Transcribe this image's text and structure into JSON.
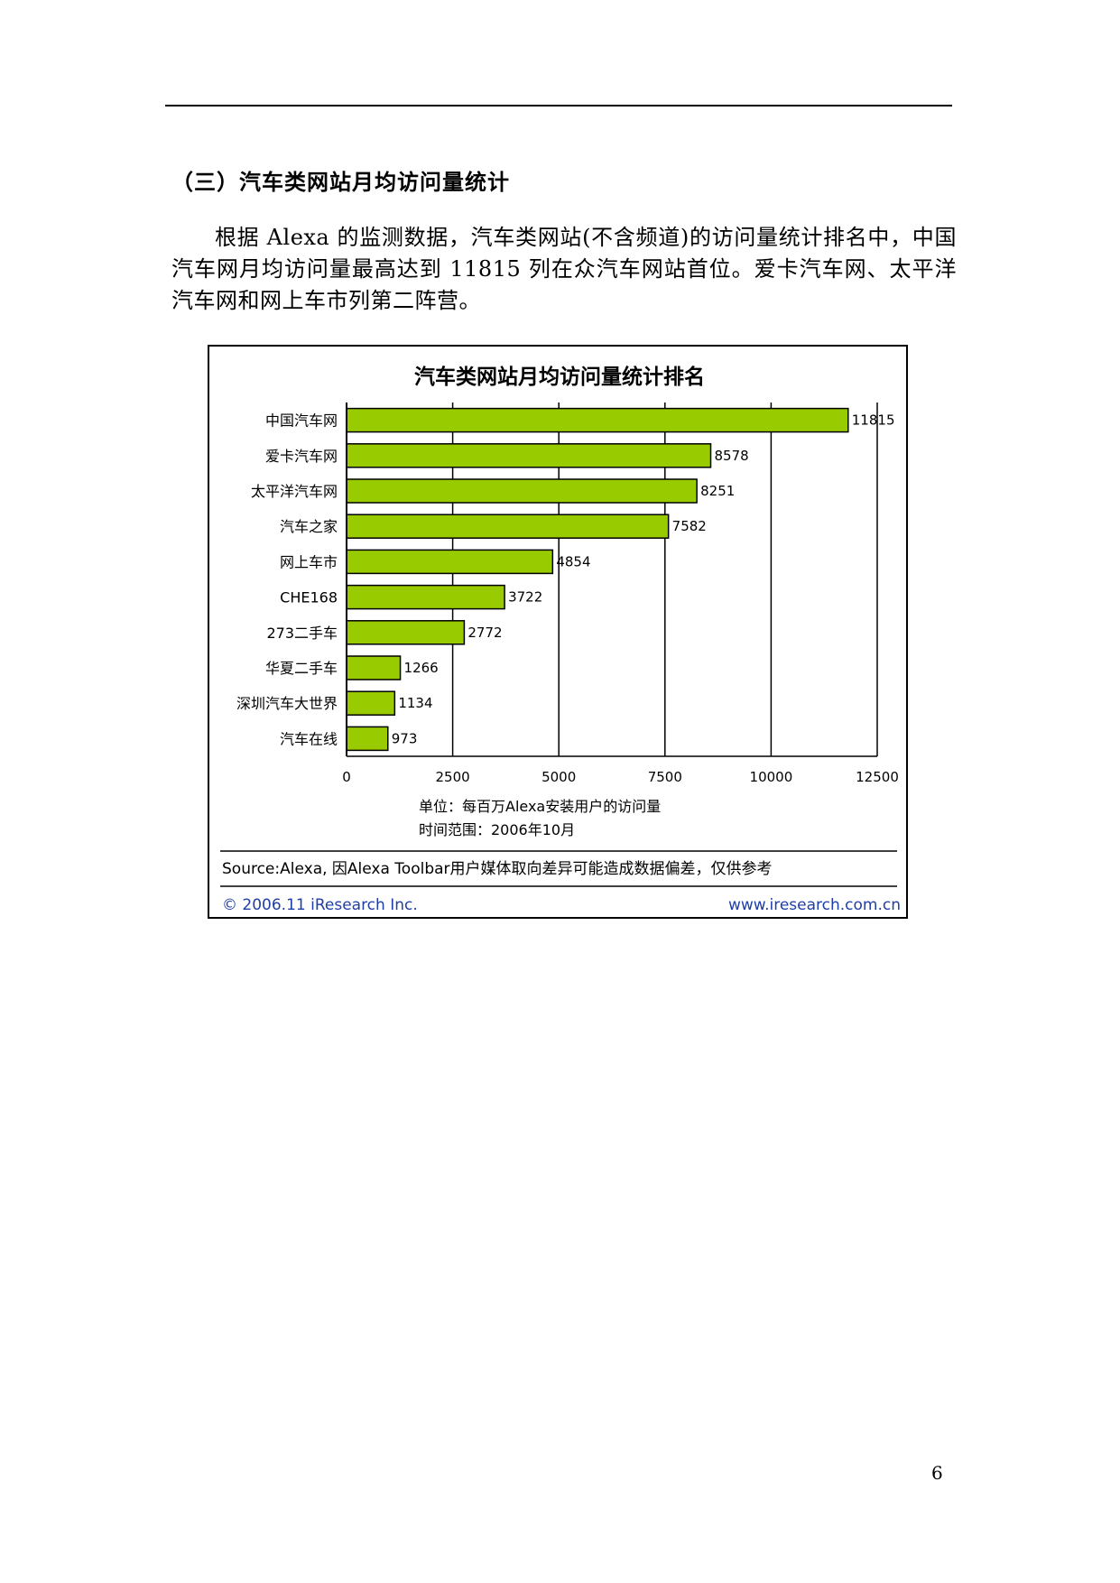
{
  "heading": "（三）汽车类网站月均访问量统计",
  "paragraph": "根据 Alexa 的监测数据，汽车类网站(不含频道)的访问量统计排名中，中国汽车网月均访问量最高达到 11815 列在众汽车网站首位。爱卡汽车网、太平洋汽车网和网上车市列第二阵营。",
  "figure": {
    "unit_note": "单位：每百万Alexa安装用户的访问量",
    "time_note": "时间范围：2006年10月",
    "source": "Source:Alexa, 因Alexa Toolbar用户媒体取向差异可能造成数据偏差，仅供参考",
    "copyright": "© 2006.11 iResearch Inc.",
    "website": "www.iresearch.com.cn"
  },
  "chart_data": {
    "type": "bar",
    "orientation": "horizontal",
    "title": "汽车类网站月均访问量统计排名",
    "categories": [
      "中国汽车网",
      "爱卡汽车网",
      "太平洋汽车网",
      "汽车之家",
      "网上车市",
      "CHE168",
      "273二手车",
      "华夏二手车",
      "深圳汽车大世界",
      "汽车在线"
    ],
    "values": [
      11815,
      8578,
      8251,
      7582,
      4854,
      3722,
      2772,
      1266,
      1134,
      973
    ],
    "value_labels": [
      "11815",
      "8578",
      "8251",
      "7582",
      "4854",
      "3722",
      "2772",
      "1266",
      "1134",
      "973"
    ],
    "xlim": [
      0,
      12500
    ],
    "xticks": [
      0,
      2500,
      5000,
      7500,
      10000,
      12500
    ],
    "xtick_labels": [
      "0",
      "2500",
      "5000",
      "7500",
      "10000",
      "12500"
    ],
    "grid": true,
    "bar_color": "#99cc00",
    "xlabel": "",
    "ylabel": ""
  },
  "page_number": "6"
}
